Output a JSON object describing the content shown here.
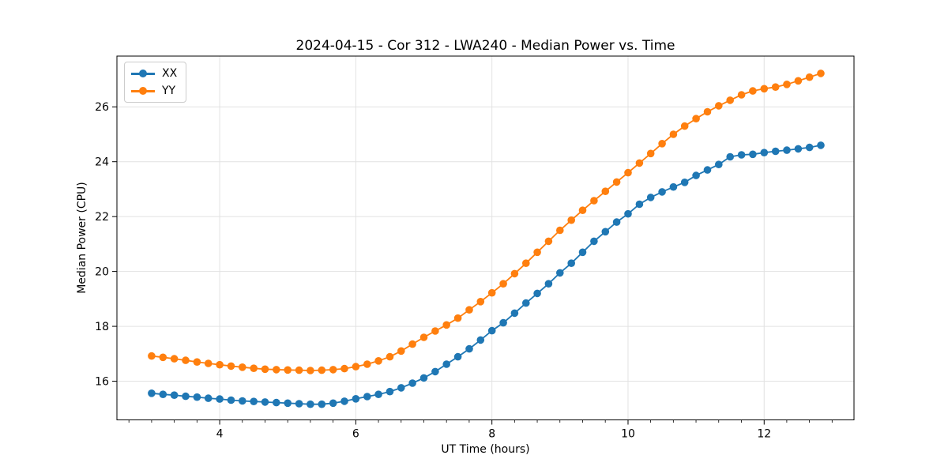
{
  "chart_data": {
    "type": "line",
    "title": "2024-04-15 - Cor 312 - LWA240 - Median Power vs. Time",
    "xlabel": "UT Time (hours)",
    "ylabel": "Median Power (CPU)",
    "xlim": [
      2.49,
      13.32
    ],
    "ylim": [
      14.59,
      27.85
    ],
    "xticks": [
      4,
      6,
      8,
      10,
      12
    ],
    "yticks": [
      16,
      18,
      20,
      22,
      24,
      26
    ],
    "x_minor_tick_step": 0.3333,
    "grid": true,
    "grid_color": "#e2e2e2",
    "spine_color": "#000000",
    "legend_position": "upper-left",
    "series": [
      {
        "name": "XX",
        "color": "#1f77b4",
        "marker": "circle",
        "x": [
          3.0,
          3.167,
          3.333,
          3.5,
          3.667,
          3.833,
          4.0,
          4.167,
          4.333,
          4.5,
          4.667,
          4.833,
          5.0,
          5.167,
          5.333,
          5.5,
          5.667,
          5.833,
          6.0,
          6.167,
          6.333,
          6.5,
          6.667,
          6.833,
          7.0,
          7.167,
          7.333,
          7.5,
          7.667,
          7.833,
          8.0,
          8.167,
          8.333,
          8.5,
          8.667,
          8.833,
          9.0,
          9.167,
          9.333,
          9.5,
          9.667,
          9.833,
          10.0,
          10.167,
          10.333,
          10.5,
          10.667,
          10.833,
          11.0,
          11.167,
          11.333,
          11.5,
          11.667,
          11.833,
          12.0,
          12.167,
          12.333,
          12.5,
          12.667,
          12.833
        ],
        "values": [
          15.56,
          15.52,
          15.49,
          15.45,
          15.42,
          15.38,
          15.35,
          15.31,
          15.28,
          15.26,
          15.24,
          15.22,
          15.2,
          15.18,
          15.16,
          15.16,
          15.2,
          15.27,
          15.36,
          15.44,
          15.52,
          15.62,
          15.76,
          15.93,
          16.12,
          16.35,
          16.62,
          16.89,
          17.18,
          17.5,
          17.84,
          18.13,
          18.48,
          18.85,
          19.2,
          19.55,
          19.95,
          20.3,
          20.7,
          21.1,
          21.45,
          21.8,
          22.1,
          22.45,
          22.7,
          22.9,
          23.08,
          23.25,
          23.5,
          23.7,
          23.9,
          24.18,
          24.25,
          24.27,
          24.33,
          24.38,
          24.42,
          24.47,
          24.52,
          24.6
        ]
      },
      {
        "name": "YY",
        "color": "#ff7f0e",
        "marker": "circle",
        "x": [
          3.0,
          3.167,
          3.333,
          3.5,
          3.667,
          3.833,
          4.0,
          4.167,
          4.333,
          4.5,
          4.667,
          4.833,
          5.0,
          5.167,
          5.333,
          5.5,
          5.667,
          5.833,
          6.0,
          6.167,
          6.333,
          6.5,
          6.667,
          6.833,
          7.0,
          7.167,
          7.333,
          7.5,
          7.667,
          7.833,
          8.0,
          8.167,
          8.333,
          8.5,
          8.667,
          8.833,
          9.0,
          9.167,
          9.333,
          9.5,
          9.667,
          9.833,
          10.0,
          10.167,
          10.333,
          10.5,
          10.667,
          10.833,
          11.0,
          11.167,
          11.333,
          11.5,
          11.667,
          11.833,
          12.0,
          12.167,
          12.333,
          12.5,
          12.667,
          12.833
        ],
        "values": [
          16.92,
          16.87,
          16.82,
          16.76,
          16.7,
          16.65,
          16.6,
          16.55,
          16.51,
          16.47,
          16.44,
          16.42,
          16.41,
          16.4,
          16.39,
          16.4,
          16.42,
          16.46,
          16.53,
          16.62,
          16.74,
          16.89,
          17.1,
          17.35,
          17.6,
          17.83,
          18.05,
          18.3,
          18.6,
          18.9,
          19.22,
          19.55,
          19.92,
          20.3,
          20.7,
          21.1,
          21.5,
          21.87,
          22.23,
          22.58,
          22.92,
          23.26,
          23.6,
          23.95,
          24.3,
          24.66,
          25.0,
          25.3,
          25.57,
          25.82,
          26.04,
          26.24,
          26.44,
          26.58,
          26.66,
          26.72,
          26.82,
          26.95,
          27.08,
          27.22
        ]
      }
    ]
  }
}
